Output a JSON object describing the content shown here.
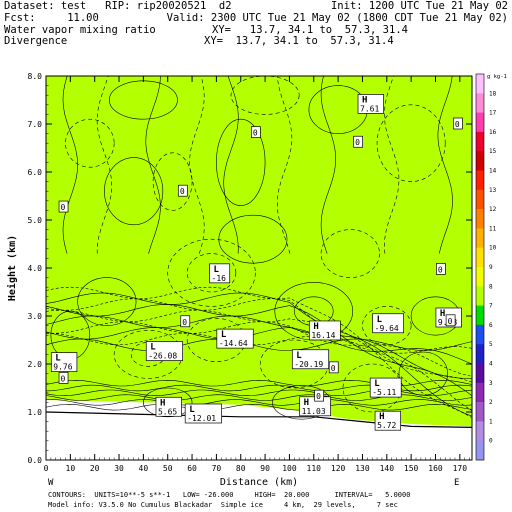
{
  "header": {
    "dataset_line": "Dataset: test   RIP: rip20020521  d2",
    "init_line": "Init: 1200 UTC Tue 21 May 02",
    "fcst_line": "Fcst:     11.00",
    "valid_line": "Valid: 2300 UTC Tue 21 May 02 (1800 CDT Tue 21 May 02)",
    "field1_name": "Water vapor mixing ratio",
    "field1_xy": "XY=   13.7, 34.1 to  57.3, 31.4",
    "field2_name": "Divergence",
    "field2_xy": "XY=  13.7, 34.1 to  57.3, 31.4"
  },
  "footer": {
    "contours_line": "CONTOURS:  UNITS=10**-5 s**-1   LOW= -26.000     HIGH=  20.000      INTERVAL=   5.0000",
    "model_line": "Model info: V3.5.0 No Cumulus Blackadar  Simple ice     4 km,  29 levels,     7 sec"
  },
  "chart_data": {
    "type": "heatmap",
    "xlabel": "Distance (km)",
    "ylabel": "Height (km)",
    "xlim": [
      0,
      175
    ],
    "ylim": [
      0,
      8
    ],
    "x_ticks": [
      0,
      10,
      20,
      30,
      40,
      50,
      60,
      70,
      80,
      90,
      100,
      110,
      120,
      130,
      140,
      150,
      160,
      170
    ],
    "y_ticks": [
      "0.0",
      "1.0",
      "2.0",
      "3.0",
      "4.0",
      "5.0",
      "6.0",
      "7.0",
      "8.0"
    ],
    "endpoint_left": "W",
    "endpoint_right": "E",
    "colorbar": {
      "unit": "g kg-1",
      "levels": [
        "18",
        "17",
        "16",
        "15",
        "14",
        "13",
        "12",
        "11",
        "10",
        "9",
        "8",
        "7",
        "6",
        "5",
        "4",
        "3",
        "2",
        "1",
        "0"
      ],
      "colors": [
        "#ffc0ff",
        "#ff8ad8",
        "#ff3cb0",
        "#f0002c",
        "#d00000",
        "#ff2000",
        "#ff5000",
        "#ff8000",
        "#ffb000",
        "#ffe000",
        "#f0ff00",
        "#b4ff00",
        "#00dc00",
        "#1e50f0",
        "#2020c8",
        "#5a0ca0",
        "#8c28b4",
        "#a05ac8",
        "#b48ce6",
        "#9494f0"
      ]
    },
    "moisture_bands": [
      {
        "level": "0",
        "color": "#9494f0"
      },
      {
        "level": "1",
        "color": "#b48ce6"
      },
      {
        "level": "2",
        "color": "#a05ac8"
      },
      {
        "level": "3",
        "color": "#8c28b4"
      },
      {
        "level": "4",
        "color": "#5a0ca0"
      },
      {
        "level": "5",
        "color": "#2020c8"
      },
      {
        "level": "6",
        "color": "#1e50f0"
      },
      {
        "level": "7",
        "color": "#00dc00"
      },
      {
        "level": "8",
        "color": "#b4ff00"
      }
    ],
    "extrema_labels": [
      {
        "type": "H",
        "value": "7.61",
        "x": 129,
        "y": 7.45
      },
      {
        "type": "L",
        "value": "-16",
        "x": 68,
        "y": 3.92
      },
      {
        "type": "H",
        "value": "9.68",
        "x": 161,
        "y": 3.0
      },
      {
        "type": "H",
        "value": "16.14",
        "x": 109,
        "y": 2.73
      },
      {
        "type": "L",
        "value": "-9.64",
        "x": 135,
        "y": 2.88
      },
      {
        "type": "L",
        "value": "-14.64",
        "x": 71,
        "y": 2.56
      },
      {
        "type": "L",
        "value": "-26.08",
        "x": 42,
        "y": 2.3
      },
      {
        "type": "L",
        "value": "-20.19",
        "x": 102,
        "y": 2.13
      },
      {
        "type": "L",
        "value": "9.76",
        "x": 3,
        "y": 2.07
      },
      {
        "type": "L",
        "value": "-5.11",
        "x": 134,
        "y": 1.54
      },
      {
        "type": "H",
        "value": "5.65",
        "x": 46,
        "y": 1.14
      },
      {
        "type": "L",
        "value": "-12.01",
        "x": 58,
        "y": 1.0
      },
      {
        "type": "H",
        "value": "11.03",
        "x": 105,
        "y": 1.15
      },
      {
        "type": "H",
        "value": "5.72",
        "x": 136,
        "y": 0.85
      }
    ],
    "zero_labels": [
      {
        "value": "0",
        "x": 7,
        "y": 5.27
      },
      {
        "value": "0",
        "x": 86,
        "y": 6.82
      },
      {
        "value": "0",
        "x": 56,
        "y": 5.6
      },
      {
        "value": "0",
        "x": 128,
        "y": 6.62
      },
      {
        "value": "0",
        "x": 169,
        "y": 7.0
      },
      {
        "value": "0",
        "x": 162,
        "y": 3.97
      },
      {
        "value": "0",
        "x": 57,
        "y": 2.88
      },
      {
        "value": "0",
        "x": 166,
        "y": 2.9
      },
      {
        "value": "0",
        "x": 7,
        "y": 1.7
      },
      {
        "value": "0",
        "x": 112,
        "y": 1.33
      },
      {
        "value": "0",
        "x": 118,
        "y": 1.92
      }
    ]
  }
}
